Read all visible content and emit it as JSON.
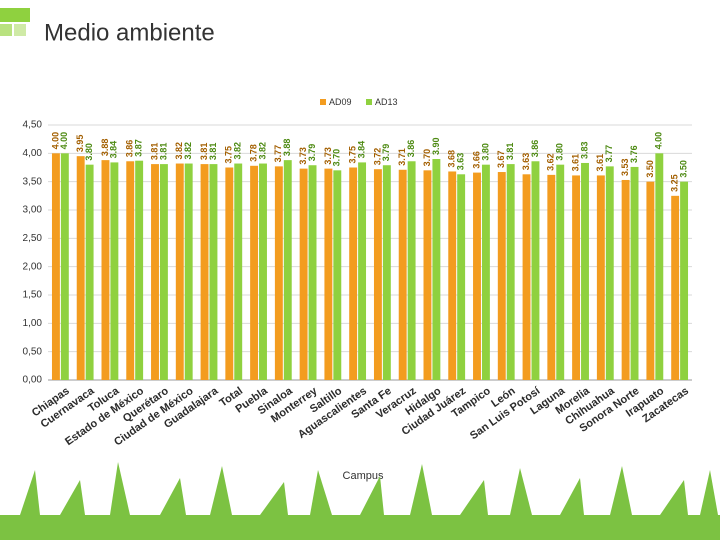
{
  "chart_data": {
    "type": "bar",
    "title": "Medio ambiente",
    "x_label": "Campus",
    "categories": [
      "Chiapas",
      "Cuernavaca",
      "Toluca",
      "Estado de México",
      "Querétaro",
      "Ciudad de México",
      "Guadalajara",
      "Total",
      "Puebla",
      "Sinaloa",
      "Monterrey",
      "Saltillo",
      "Aguascalientes",
      "Santa Fe",
      "Veracruz",
      "Hidalgo",
      "Ciudad Juárez",
      "Tampico",
      "León",
      "San Luis Potosí",
      "Laguna",
      "Morelia",
      "Chihuahua",
      "Sonora Norte",
      "Irapuato",
      "Zacatecas"
    ],
    "series": [
      {
        "name": "AD09",
        "color": "#f39c1f",
        "values": [
          4.0,
          3.95,
          3.88,
          3.86,
          3.81,
          3.82,
          3.81,
          3.75,
          3.78,
          3.77,
          3.73,
          3.73,
          3.75,
          3.72,
          3.71,
          3.7,
          3.68,
          3.66,
          3.67,
          3.63,
          3.62,
          3.61,
          3.61,
          3.53,
          3.5,
          3.25
        ],
        "value_labels": [
          "4.00",
          "3.95",
          "3.88",
          "3.86",
          "3.81",
          "3.82",
          "3.81",
          "3.75",
          "3.78",
          "3.77",
          "3.73",
          "3.73",
          "3.75",
          "3.72",
          "3.71",
          "3.70",
          "3.68",
          "3.66",
          "3.67",
          "3.63",
          "3.62",
          "3.61",
          "3.61",
          "3.53",
          "3.50",
          "3.25"
        ]
      },
      {
        "name": "AD13",
        "color": "#8fd13f",
        "values": [
          4.0,
          3.8,
          3.84,
          3.87,
          3.81,
          3.82,
          3.81,
          3.82,
          3.82,
          3.88,
          3.79,
          3.7,
          3.84,
          3.79,
          3.86,
          3.9,
          3.63,
          3.8,
          3.81,
          3.86,
          3.8,
          3.83,
          3.77,
          3.76,
          4.0,
          3.5
        ],
        "value_labels": [
          "4.00",
          "3.80",
          "3.84",
          "3.87",
          "3.81",
          "3.82",
          "3.81",
          "3.82",
          "3.82",
          "3.88",
          "3.79",
          "3.70",
          "3.84",
          "3.79",
          "3.86",
          "3.90",
          "3.63",
          "3.80",
          "3.81",
          "3.86",
          "3.80",
          "3.83",
          "3.77",
          "3.76",
          "4.00",
          "3.50"
        ]
      }
    ],
    "ylim": [
      0,
      4.5
    ],
    "yticks": [
      {
        "value": 0,
        "label": "0,00"
      },
      {
        "value": 0.5,
        "label": "0,50"
      },
      {
        "value": 1,
        "label": "1,00"
      },
      {
        "value": 1.5,
        "label": "1,50"
      },
      {
        "value": 2,
        "label": "2,00"
      },
      {
        "value": 2.5,
        "label": "2,50"
      },
      {
        "value": 3,
        "label": "3,00"
      },
      {
        "value": 3.5,
        "label": "3,50"
      },
      {
        "value": 4,
        "label": "4,00"
      },
      {
        "value": 4.5,
        "label": "4,50"
      }
    ],
    "grid": true,
    "legend": "top"
  }
}
